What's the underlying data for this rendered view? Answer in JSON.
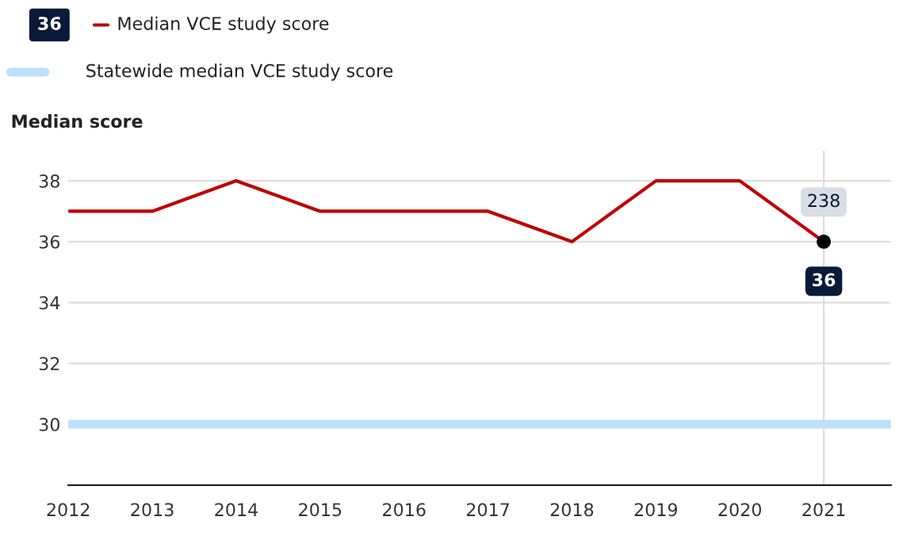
{
  "chart_data": {
    "type": "line",
    "ylabel": "Median score",
    "x": [
      2012,
      2013,
      2014,
      2015,
      2016,
      2017,
      2018,
      2019,
      2020,
      2021
    ],
    "series": [
      {
        "name": "Median VCE study score",
        "color": "#c00000",
        "values": [
          37,
          37,
          38,
          37,
          37,
          37,
          36,
          38,
          38,
          36
        ]
      },
      {
        "type": "scatter",
        "color": "#000000",
        "x": [
          2021
        ],
        "values": [
          36
        ],
        "marker": "circle"
      }
    ],
    "xlim": [
      2012,
      2021.8
    ],
    "xticks": [
      2012,
      2013,
      2014,
      2015,
      2016,
      2017,
      2018,
      2019,
      2020,
      2021
    ],
    "ylim": [
      28,
      39
    ],
    "yticks": [
      30,
      32,
      34,
      36,
      38
    ],
    "ref_lines": [
      {
        "axis": "y",
        "value": 30,
        "label": "Statewide median VCE study score",
        "color": "#bde0fb"
      },
      {
        "axis": "x",
        "value": 2021,
        "color": "#dddddd"
      }
    ],
    "annotations": [
      "36",
      {
        "text": "238",
        "x": 2021,
        "y": 36
      },
      {
        "text": "36",
        "x": 2021,
        "y": 36
      }
    ],
    "grid": "y",
    "legend": "top left",
    "line_style": "solid"
  }
}
